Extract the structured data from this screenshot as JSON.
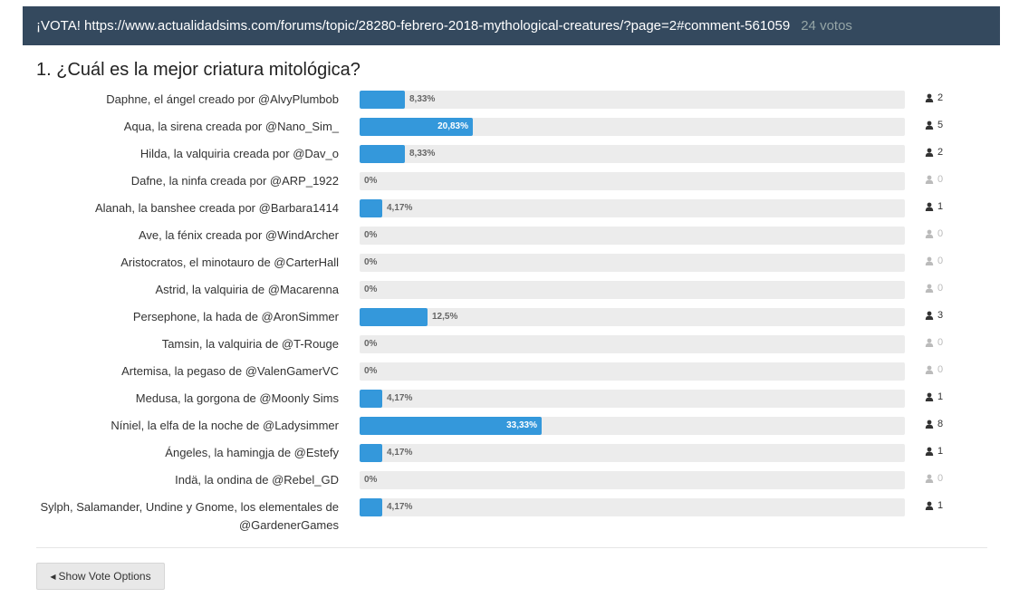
{
  "header": {
    "title": "¡VOTA! https://www.actualidadsims.com/forums/topic/28280-febrero-2018-mythological-creatures/?page=2#comment-561059",
    "votes": "24 votos"
  },
  "question": "1. ¿Cuál es la mejor criatura mitológica?",
  "options": [
    {
      "label": "Daphne, el ángel creado por @AlvyPlumbob",
      "percent_text": "8,33%",
      "percent": 8.33,
      "count": "2"
    },
    {
      "label": "Aqua, la sirena creada por @Nano_Sim_",
      "percent_text": "20,83%",
      "percent": 20.83,
      "count": "5"
    },
    {
      "label": "Hilda, la valquiria creada por @Dav_o",
      "percent_text": "8,33%",
      "percent": 8.33,
      "count": "2"
    },
    {
      "label": "Dafne, la ninfa creada por @ARP_1922",
      "percent_text": "0%",
      "percent": 0,
      "count": "0"
    },
    {
      "label": "Alanah, la banshee creada por @Barbara1414",
      "percent_text": "4,17%",
      "percent": 4.17,
      "count": "1"
    },
    {
      "label": "Ave, la fénix creada por @WindArcher",
      "percent_text": "0%",
      "percent": 0,
      "count": "0"
    },
    {
      "label": "Aristocratos, el minotauro de @CarterHall",
      "percent_text": "0%",
      "percent": 0,
      "count": "0"
    },
    {
      "label": "Astrid, la valquiria de @Macarenna",
      "percent_text": "0%",
      "percent": 0,
      "count": "0"
    },
    {
      "label": "Persephone, la hada de @AronSimmer",
      "percent_text": "12,5%",
      "percent": 12.5,
      "count": "3"
    },
    {
      "label": "Tamsin, la valquiria de @T-Rouge",
      "percent_text": "0%",
      "percent": 0,
      "count": "0"
    },
    {
      "label": "Artemisa, la pegaso de @ValenGamerVC",
      "percent_text": "0%",
      "percent": 0,
      "count": "0"
    },
    {
      "label": "Medusa, la gorgona de @Moonly Sims",
      "percent_text": "4,17%",
      "percent": 4.17,
      "count": "1"
    },
    {
      "label": "Níniel, la elfa de la noche de @Ladysimmer",
      "percent_text": "33,33%",
      "percent": 33.33,
      "count": "8"
    },
    {
      "label": "Ángeles, la hamingja de @Estefy",
      "percent_text": "4,17%",
      "percent": 4.17,
      "count": "1"
    },
    {
      "label": "Indä, la ondina de @Rebel_GD",
      "percent_text": "0%",
      "percent": 0,
      "count": "0"
    },
    {
      "label": "Sylph, Salamander, Undine y Gnome, los elementales de @GardenerGames",
      "percent_text": "4,17%",
      "percent": 4.17,
      "count": "1"
    }
  ],
  "footer": {
    "button_label": "Show Vote Options",
    "button_icon": "caret-left-icon"
  },
  "colors": {
    "header_bg": "#34495e",
    "bar_fill": "#3498db",
    "bar_track": "#ececec"
  }
}
